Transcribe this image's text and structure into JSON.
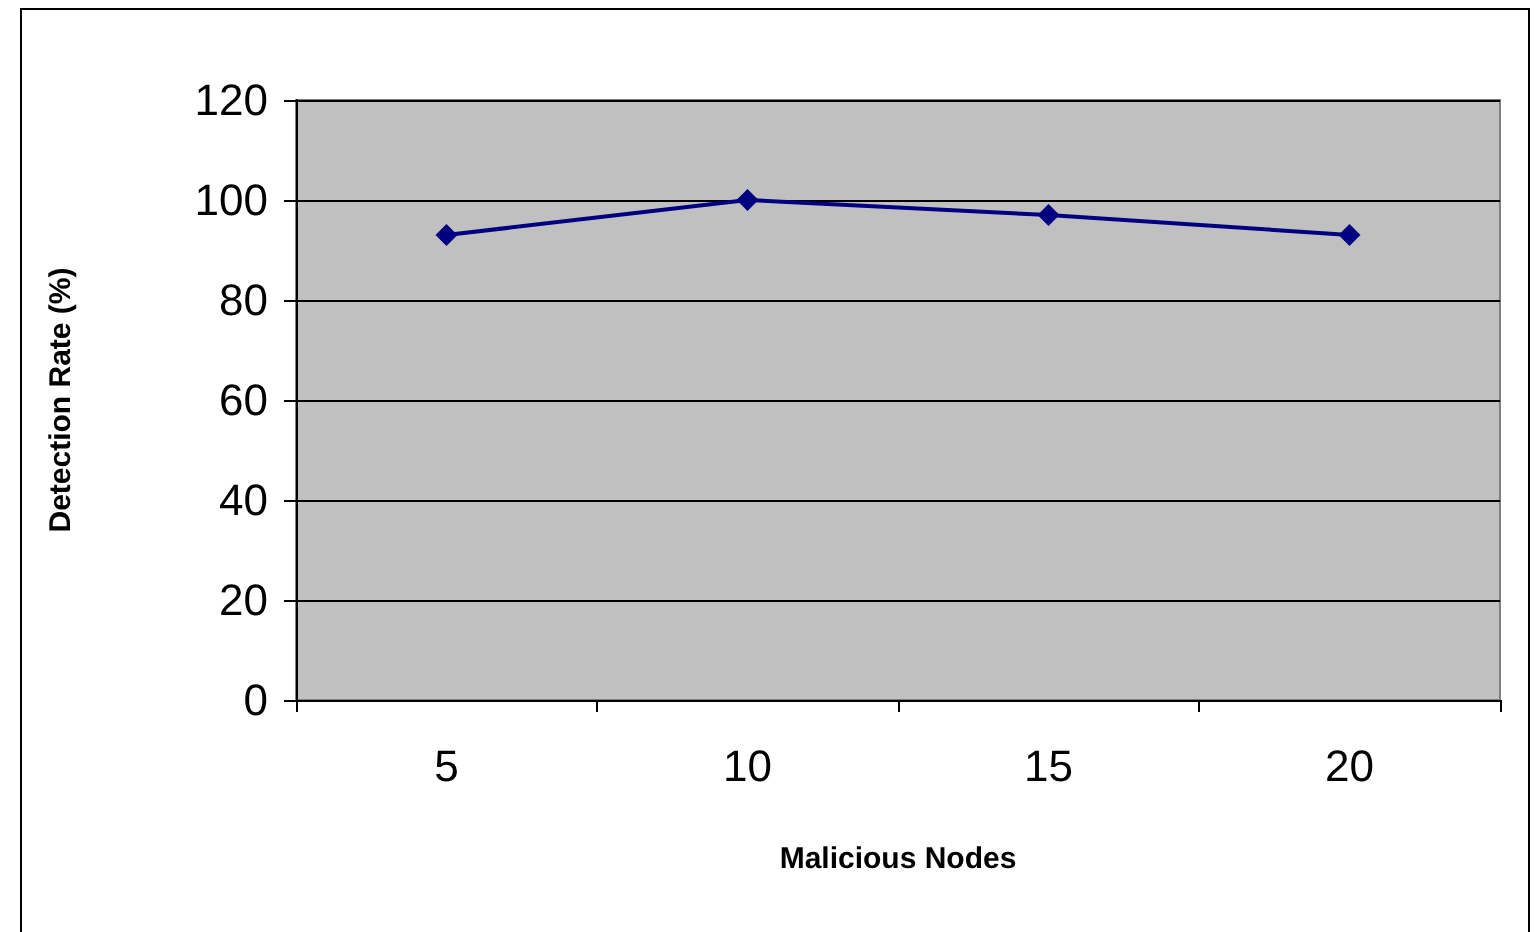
{
  "chart_data": {
    "type": "line",
    "xlabel": "Malicious Nodes",
    "ylabel": "Detection Rate (%)",
    "categories": [
      "5",
      "10",
      "15",
      "20"
    ],
    "series": [
      {
        "color": "#000080",
        "values": [
          93,
          100,
          97,
          93
        ]
      }
    ],
    "ylim": [
      0,
      120
    ],
    "yticks": [
      0,
      20,
      40,
      60,
      80,
      100,
      120
    ],
    "grid": "y",
    "marker": "diamond",
    "line_style": "solid"
  }
}
